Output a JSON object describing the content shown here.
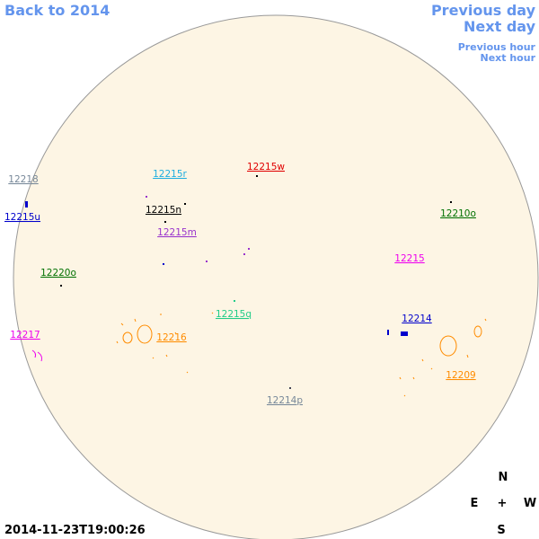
{
  "navigation": {
    "back": "Back to 2014",
    "previous_day": "Previous day",
    "next_day": "Next day",
    "previous_hour": "Previous hour",
    "next_hour": "Next hour"
  },
  "regions": [
    {
      "label": "12218",
      "color": "#778899"
    },
    {
      "label": "12215u",
      "color": "#0000cc"
    },
    {
      "label": "12215r",
      "color": "#1eaee0"
    },
    {
      "label": "12215w",
      "color": "#e00000"
    },
    {
      "label": "12215n",
      "color": "#000000"
    },
    {
      "label": "12215m",
      "color": "#9933cc"
    },
    {
      "label": "12210o",
      "color": "#007000"
    },
    {
      "label": "12215",
      "color": "#ee00ee"
    },
    {
      "label": "12220o",
      "color": "#007000"
    },
    {
      "label": "12215q",
      "color": "#22cc88"
    },
    {
      "label": "12216",
      "color": "#ff8c00"
    },
    {
      "label": "12214",
      "color": "#0000cc"
    },
    {
      "label": "12217",
      "color": "#ee00ee"
    },
    {
      "label": "12209",
      "color": "#ff8c00"
    },
    {
      "label": "12214p",
      "color": "#778899"
    }
  ],
  "compass": {
    "north": "N",
    "east": "E",
    "center": "+",
    "west": "W",
    "south": "S"
  },
  "timestamp": "2014-11-23T19:00:26"
}
